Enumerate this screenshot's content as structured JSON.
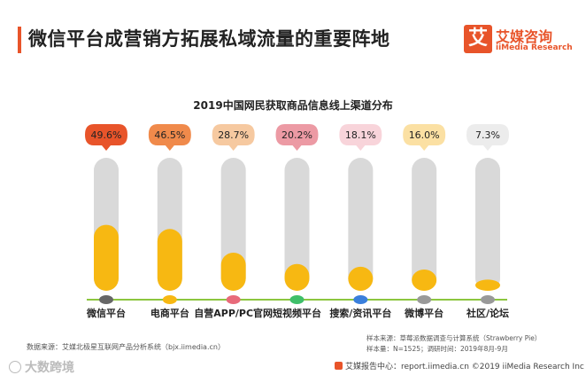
{
  "header": {
    "title": "微信平台成营销方拓展私域流量的重要阵地",
    "logo_char": "艾",
    "logo_cn": "艾媒咨询",
    "logo_en": "iiMedia Research"
  },
  "chart_data": {
    "type": "bar",
    "title": "2019中国网民获取商品信息线上渠道分布",
    "categories": [
      "微信平台",
      "电商平台",
      "自营APP/PC官网",
      "短视频平台",
      "搜索/资讯平台",
      "微博平台",
      "社区/论坛"
    ],
    "values": [
      49.6,
      46.5,
      28.7,
      20.2,
      18.1,
      16.0,
      7.3
    ],
    "value_labels": [
      "49.6%",
      "46.5%",
      "28.7%",
      "20.2%",
      "18.1%",
      "16.0%",
      "7.3%"
    ],
    "unit": "%",
    "ylim": [
      0,
      100
    ],
    "bubble_colors": [
      "#e8542a",
      "#f08a4b",
      "#f6c9a0",
      "#ec9aa4",
      "#f8d4da",
      "#fbe0a3",
      "#ececec"
    ],
    "dot_colors": [
      "#666666",
      "#f7b812",
      "#e86a7a",
      "#3fbf6a",
      "#3a7fdc",
      "#999999",
      "#999999"
    ],
    "bar_fill_color": "#f7b812",
    "bar_track_color": "#d9d9d9",
    "baseline_color": "#8cc63f"
  },
  "footer": {
    "data_source": "数据来源：艾媒北极星互联网产品分析系统（bjx.iimedia.cn）",
    "sample_source": "样本来源：草莓派数据调查与计算系统（Strawberry Pie）",
    "sample_info": "样本量：N=1525；调研时间：2019年8月-9月",
    "watermark": "大数跨境",
    "copyright": "艾媒报告中心：report.iimedia.cn ©2019  iiMedia Research  Inc"
  }
}
